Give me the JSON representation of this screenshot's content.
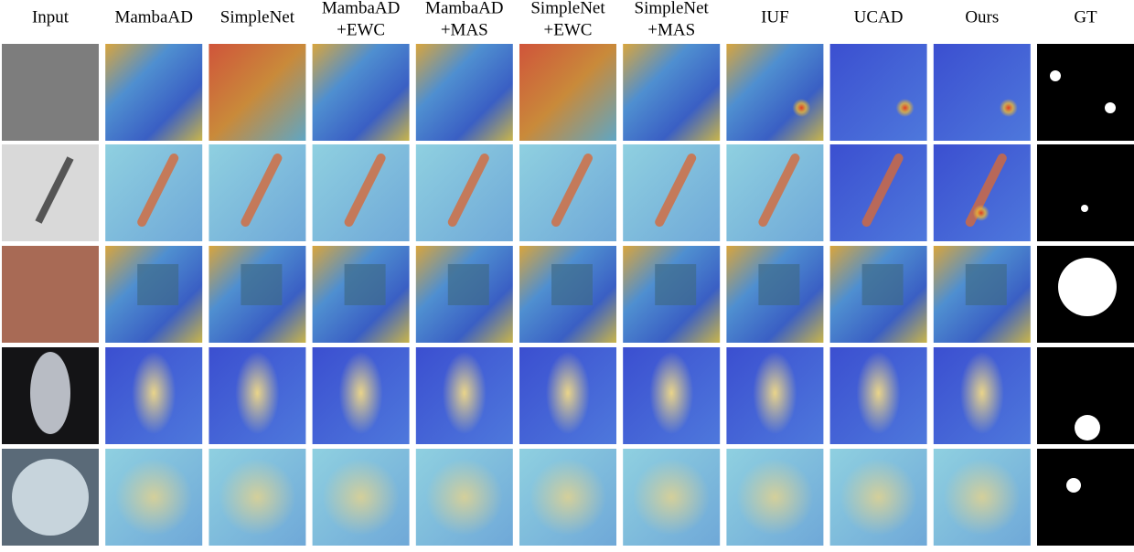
{
  "columns": [
    {
      "lines": [
        "Input"
      ]
    },
    {
      "lines": [
        "MambaAD"
      ]
    },
    {
      "lines": [
        "SimpleNet"
      ]
    },
    {
      "lines": [
        "MambaAD",
        "+EWC"
      ]
    },
    {
      "lines": [
        "MambaAD",
        "+MAS"
      ]
    },
    {
      "lines": [
        "SimpleNet",
        "+EWC"
      ]
    },
    {
      "lines": [
        "SimpleNet",
        "+MAS"
      ]
    },
    {
      "lines": [
        "IUF"
      ]
    },
    {
      "lines": [
        "UCAD"
      ]
    },
    {
      "lines": [
        "Ours"
      ]
    },
    {
      "lines": [
        "GT"
      ]
    }
  ]
}
